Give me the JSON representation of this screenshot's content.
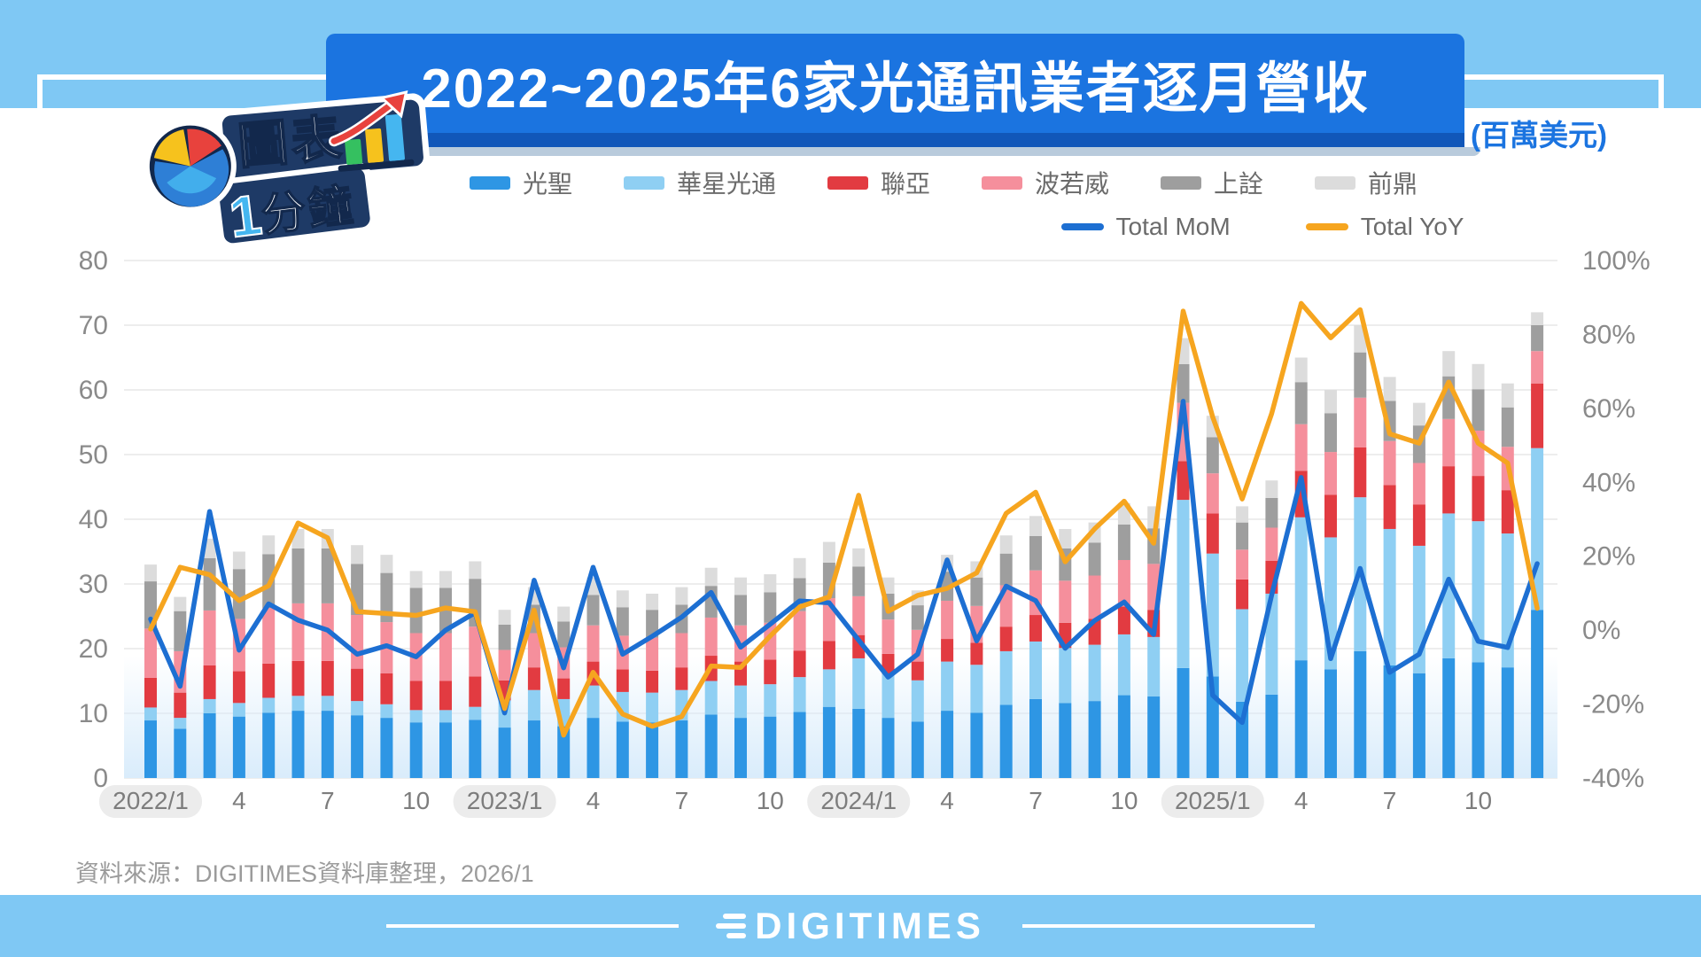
{
  "page": {
    "title": "2022~2025年6家光通訊業者逐月營收",
    "unit_label": "(百萬美元)",
    "source_note": "資料來源：DIGITIMES資料庫整理，2026/1",
    "brand_logo": "DIGITIMES",
    "badge": {
      "line1": "圖表",
      "line2_num": "1",
      "line2_text": "分鐘"
    }
  },
  "colors": {
    "band_blue": "#7fc8f4",
    "title_blue": "#1b74e0",
    "title_shadow": "#1157b9",
    "title_under": "#b9cbdc",
    "grid": "#ededed",
    "axis_text": "#8a8a8a",
    "tick_text": "#7d7d7d",
    "pill_bg": "#ececec",
    "plot_fade": "#d9ecfb"
  },
  "chart_data": {
    "type": "bar",
    "stacked": true,
    "title": "2022~2025年6家光通訊業者逐月營收",
    "ylabel_left": "百萬美元",
    "ylabel_right": "%",
    "left_axis": {
      "min": 0,
      "max": 80,
      "step": 10,
      "tick_labels": [
        "0",
        "10",
        "20",
        "30",
        "40",
        "50",
        "60",
        "70",
        "80"
      ]
    },
    "right_axis": {
      "min": -40,
      "max": 100,
      "step": 20,
      "tick_labels": [
        "-40%",
        "-20%",
        "0%",
        "20%",
        "40%",
        "60%",
        "80%",
        "100%"
      ]
    },
    "categories": [
      "2022/1",
      "2022/2",
      "2022/3",
      "2022/4",
      "2022/5",
      "2022/6",
      "2022/7",
      "2022/8",
      "2022/9",
      "2022/10",
      "2022/11",
      "2022/12",
      "2023/1",
      "2023/2",
      "2023/3",
      "2023/4",
      "2023/5",
      "2023/6",
      "2023/7",
      "2023/8",
      "2023/9",
      "2023/10",
      "2023/11",
      "2023/12",
      "2024/1",
      "2024/2",
      "2024/3",
      "2024/4",
      "2024/5",
      "2024/6",
      "2024/7",
      "2024/8",
      "2024/9",
      "2024/10",
      "2024/11",
      "2024/12",
      "2025/1",
      "2025/2",
      "2025/3",
      "2025/4",
      "2025/5",
      "2025/6",
      "2025/7",
      "2025/8",
      "2025/9",
      "2025/10",
      "2025/11",
      "2025/12"
    ],
    "x_ticks": [
      {
        "i": 0,
        "label": "2022/1",
        "pill": true
      },
      {
        "i": 3,
        "label": "4",
        "pill": false
      },
      {
        "i": 6,
        "label": "7",
        "pill": false
      },
      {
        "i": 9,
        "label": "10",
        "pill": false
      },
      {
        "i": 12,
        "label": "2023/1",
        "pill": true
      },
      {
        "i": 15,
        "label": "4",
        "pill": false
      },
      {
        "i": 18,
        "label": "7",
        "pill": false
      },
      {
        "i": 21,
        "label": "10",
        "pill": false
      },
      {
        "i": 24,
        "label": "2024/1",
        "pill": true
      },
      {
        "i": 27,
        "label": "4",
        "pill": false
      },
      {
        "i": 30,
        "label": "7",
        "pill": false
      },
      {
        "i": 33,
        "label": "10",
        "pill": false
      },
      {
        "i": 36,
        "label": "2025/1",
        "pill": true
      },
      {
        "i": 39,
        "label": "4",
        "pill": false
      },
      {
        "i": 42,
        "label": "7",
        "pill": false
      },
      {
        "i": 45,
        "label": "10",
        "pill": false
      }
    ],
    "bar_series": [
      {
        "name": "光聖",
        "color": "#2e96e4",
        "values": [
          8.9,
          7.6,
          10,
          9.5,
          10.1,
          10.4,
          10.4,
          9.7,
          9.3,
          8.6,
          8.6,
          9,
          7.8,
          8.9,
          8,
          9.3,
          8.7,
          8.6,
          8.9,
          9.8,
          9.3,
          9.5,
          10.2,
          11,
          10.7,
          9.3,
          8.7,
          10.4,
          10.1,
          11.3,
          12.2,
          11.6,
          11.9,
          12.8,
          12.6,
          17,
          15.7,
          11.8,
          12.9,
          18.2,
          16.8,
          19.6,
          17.4,
          16.2,
          18.5,
          17.9,
          17.1,
          26
        ]
      },
      {
        "name": "華星光通",
        "color": "#8fcff3",
        "values": [
          2,
          1.7,
          2.2,
          2.1,
          2.3,
          2.3,
          2.3,
          2.2,
          2.1,
          1.9,
          1.9,
          2,
          4.2,
          4.7,
          4.2,
          5,
          4.6,
          4.6,
          4.7,
          5.2,
          5,
          5,
          5.4,
          5.8,
          7.8,
          6.8,
          6.4,
          7.6,
          7.4,
          8.3,
          8.9,
          8.5,
          8.7,
          9.4,
          9.2,
          26,
          19,
          14.3,
          15.6,
          22.1,
          20.4,
          23.8,
          21.1,
          19.7,
          22.4,
          21.8,
          20.7,
          25
        ]
      },
      {
        "name": "聯亞",
        "color": "#e23b41",
        "values": [
          4.6,
          3.9,
          5.2,
          4.9,
          5.3,
          5.4,
          5.4,
          5,
          4.8,
          4.5,
          4.5,
          4.7,
          3.1,
          3.5,
          3.2,
          3.7,
          3.5,
          3.4,
          3.5,
          3.9,
          3.7,
          3.8,
          4.1,
          4.4,
          3.6,
          3.1,
          2.9,
          3.5,
          3.4,
          3.8,
          4.1,
          3.9,
          4,
          4.3,
          4.2,
          6,
          6.2,
          4.6,
          5.1,
          7.2,
          6.6,
          7.7,
          6.8,
          6.4,
          7.3,
          7,
          6.7,
          10
        ]
      },
      {
        "name": "波若威",
        "color": "#f58f9c",
        "values": [
          7.6,
          6.4,
          8.5,
          8.1,
          8.6,
          8.9,
          8.9,
          8.3,
          7.9,
          7.4,
          7.4,
          7.7,
          4.7,
          5.3,
          4.8,
          5.6,
          5.2,
          5.1,
          5.3,
          5.9,
          5.6,
          5.7,
          6.1,
          6.6,
          6,
          5.3,
          4.9,
          5.9,
          5.7,
          6.4,
          6.9,
          6.5,
          6.7,
          7.2,
          7.1,
          9,
          6.2,
          4.6,
          5.1,
          7.2,
          6.6,
          7.7,
          6.8,
          6.4,
          7.3,
          7,
          6.7,
          5
        ]
      },
      {
        "name": "上詮",
        "color": "#9e9e9e",
        "values": [
          7.3,
          6.2,
          8.1,
          7.7,
          8.3,
          8.5,
          8.5,
          7.9,
          7.6,
          7,
          7,
          7.4,
          3.9,
          4.4,
          4,
          4.7,
          4.4,
          4.3,
          4.4,
          4.9,
          4.7,
          4.7,
          5.1,
          5.5,
          4.6,
          4,
          3.8,
          4.5,
          4.4,
          4.9,
          5.3,
          5,
          5.1,
          5.5,
          5.5,
          6,
          5.6,
          4.2,
          4.6,
          6.5,
          6,
          7,
          6.2,
          5.8,
          6.6,
          6.4,
          6.1,
          4
        ]
      },
      {
        "name": "前鼎",
        "color": "#dcdcdc",
        "values": [
          2.6,
          2.2,
          3,
          2.7,
          2.9,
          3,
          3,
          2.9,
          2.8,
          2.6,
          2.6,
          2.7,
          2.3,
          2.7,
          2.3,
          2.7,
          2.6,
          2.5,
          2.7,
          2.8,
          2.7,
          2.8,
          3.1,
          3.2,
          2.8,
          2.5,
          2.3,
          2.6,
          2.5,
          2.8,
          3.1,
          3,
          3.1,
          3.3,
          3.4,
          4,
          3.3,
          2.5,
          2.7,
          3.8,
          3.6,
          4.2,
          3.7,
          3.5,
          3.9,
          3.9,
          3.7,
          2
        ]
      }
    ],
    "line_series": [
      {
        "name": "Total MoM",
        "color": "#1d6fd2",
        "axis": "right",
        "values": [
          3,
          -15.2,
          32.1,
          -5.4,
          7.1,
          2.7,
          0,
          -6.5,
          -4.2,
          -7.2,
          0,
          4.7,
          -22.4,
          13.5,
          -10.2,
          17,
          -6.5,
          -1.7,
          3.5,
          10.2,
          -4.6,
          1.6,
          7.9,
          7.4,
          -2.7,
          -12.7,
          -6.5,
          19,
          -2.9,
          11.9,
          8,
          -4.9,
          2.6,
          7.6,
          -1.2,
          61.9,
          -17.6,
          -25,
          9.5,
          41.3,
          -7.7,
          16.7,
          -11.4,
          -6.5,
          13.8,
          -3,
          -4.7,
          18
        ]
      },
      {
        "name": "Total YoY",
        "color": "#f6a51f",
        "axis": "right",
        "values": [
          0.3,
          17,
          15,
          8,
          12,
          29,
          25,
          5,
          4.5,
          4,
          6,
          5,
          -21.2,
          5.4,
          -28.4,
          -11.4,
          -22.7,
          -26,
          -23.4,
          -9.7,
          -10.1,
          -1.6,
          6.3,
          9,
          36.5,
          5.1,
          9.4,
          11.3,
          15.5,
          31.6,
          37.3,
          18.5,
          27.4,
          34.9,
          23.5,
          86.3,
          57.7,
          35.5,
          58.6,
          88.4,
          79.1,
          86.7,
          53.1,
          50.6,
          67.1,
          50.6,
          45.2,
          5.9
        ]
      }
    ],
    "legend_position": "top",
    "grid": true
  }
}
